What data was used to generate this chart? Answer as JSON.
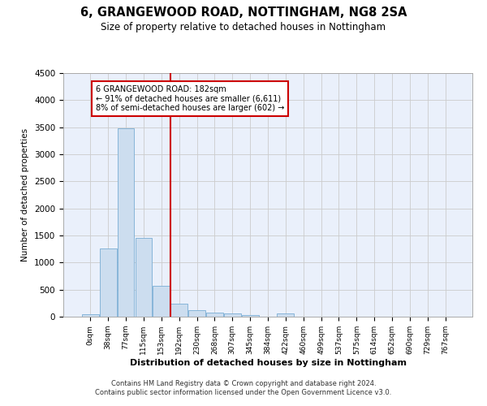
{
  "title": "6, GRANGEWOOD ROAD, NOTTINGHAM, NG8 2SA",
  "subtitle": "Size of property relative to detached houses in Nottingham",
  "xlabel": "Distribution of detached houses by size in Nottingham",
  "ylabel": "Number of detached properties",
  "bar_color": "#ccddef",
  "bar_edge_color": "#7aadd4",
  "background_color": "#eaf0fb",
  "grid_color": "#cccccc",
  "bin_labels": [
    "0sqm",
    "38sqm",
    "77sqm",
    "115sqm",
    "153sqm",
    "192sqm",
    "230sqm",
    "268sqm",
    "307sqm",
    "345sqm",
    "384sqm",
    "422sqm",
    "460sqm",
    "499sqm",
    "537sqm",
    "575sqm",
    "614sqm",
    "652sqm",
    "690sqm",
    "729sqm",
    "767sqm"
  ],
  "bar_heights": [
    40,
    1260,
    3480,
    1455,
    575,
    240,
    115,
    80,
    55,
    30,
    0,
    55,
    0,
    0,
    0,
    0,
    0,
    0,
    0,
    0,
    0
  ],
  "ylim": [
    0,
    4500
  ],
  "yticks": [
    0,
    500,
    1000,
    1500,
    2000,
    2500,
    3000,
    3500,
    4000,
    4500
  ],
  "annotation_line1": "6 GRANGEWOOD ROAD: 182sqm",
  "annotation_line2": "← 91% of detached houses are smaller (6,611)",
  "annotation_line3": "8% of semi-detached houses are larger (602) →",
  "annotation_box_color": "#ffffff",
  "annotation_border_color": "#cc0000",
  "vline_color": "#cc0000",
  "vline_x": 4.5,
  "footer_line1": "Contains HM Land Registry data © Crown copyright and database right 2024.",
  "footer_line2": "Contains public sector information licensed under the Open Government Licence v3.0."
}
